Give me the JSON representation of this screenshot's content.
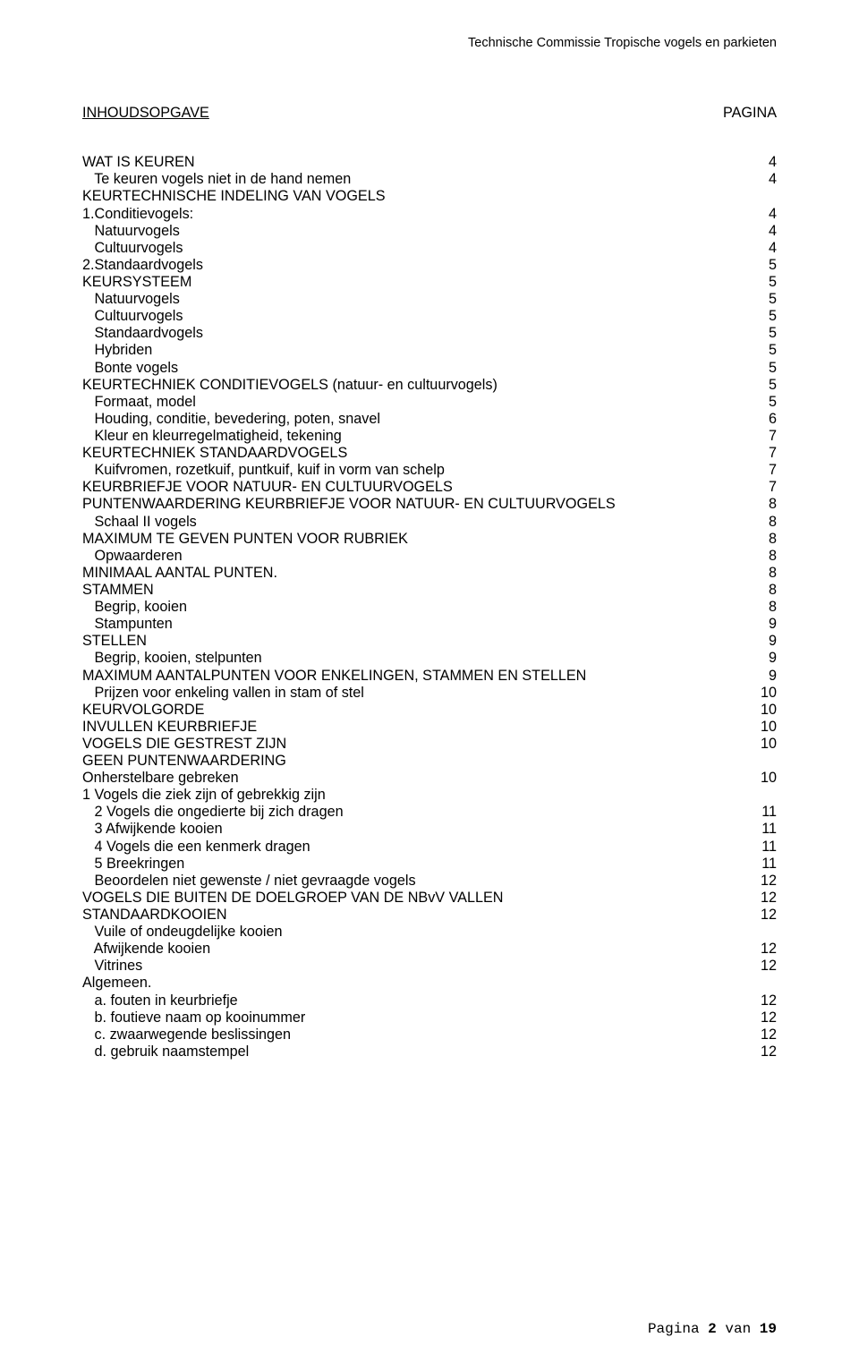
{
  "header": "Technische Commissie Tropische vogels en parkieten",
  "toc_title_left": "INHOUDSOPGAVE",
  "toc_title_right": "PAGINA",
  "entries": [
    {
      "label": "WAT IS KEUREN",
      "page": "4",
      "indent": 0
    },
    {
      "label": "Te keuren vogels niet in de hand nemen",
      "page": "4",
      "indent": 1
    },
    {
      "label": "KEURTECHNISCHE INDELING VAN VOGELS",
      "page": "",
      "indent": 0
    },
    {
      "label": "1.Conditievogels:",
      "page": "4",
      "indent": 0
    },
    {
      "label": "Natuurvogels",
      "page": "4",
      "indent": 1
    },
    {
      "label": "Cultuurvogels",
      "page": "4",
      "indent": 1
    },
    {
      "label": "2.Standaardvogels",
      "page": "5",
      "indent": 0
    },
    {
      "label": "KEURSYSTEEM",
      "page": "5",
      "indent": 0
    },
    {
      "label": "Natuurvogels",
      "page": "5",
      "indent": 1
    },
    {
      "label": "Cultuurvogels",
      "page": "5",
      "indent": 1
    },
    {
      "label": "Standaardvogels",
      "page": "5",
      "indent": 1
    },
    {
      "label": "Hybriden",
      "page": "5",
      "indent": 1
    },
    {
      "label": "Bonte vogels",
      "page": "5",
      "indent": 1
    },
    {
      "label": "KEURTECHNIEK CONDITIEVOGELS (natuur- en cultuurvogels)",
      "page": "5",
      "indent": 0
    },
    {
      "label": "Formaat, model",
      "page": "5",
      "indent": 1
    },
    {
      "label": "Houding, conditie, bevedering, poten, snavel",
      "page": "6",
      "indent": 1
    },
    {
      "label": "Kleur en kleurregelmatigheid, tekening",
      "page": "7",
      "indent": 1
    },
    {
      "label": "KEURTECHNIEK STANDAARDVOGELS",
      "page": "7",
      "indent": 0
    },
    {
      "label": "Kuifvromen, rozetkuif, puntkuif, kuif in vorm van schelp",
      "page": "7",
      "indent": 1
    },
    {
      "label": "KEURBRIEFJE VOOR NATUUR- EN CULTUURVOGELS",
      "page": "7",
      "indent": 0
    },
    {
      "label": "PUNTENWAARDERING KEURBRIEFJE VOOR NATUUR- EN CULTUURVOGELS",
      "page": "8",
      "indent": 0
    },
    {
      "label": "Schaal II vogels",
      "page": "8",
      "indent": 1
    },
    {
      "label": "MAXIMUM TE GEVEN PUNTEN VOOR RUBRIEK",
      "page": "8",
      "indent": 0
    },
    {
      "label": "Opwaarderen",
      "page": "8",
      "indent": 1
    },
    {
      "label": "MINIMAAL AANTAL PUNTEN.",
      "page": "8",
      "indent": 0
    },
    {
      "label": "STAMMEN",
      "page": "8",
      "indent": 0
    },
    {
      "label": "Begrip, kooien",
      "page": "8",
      "indent": 1
    },
    {
      "label": "Stampunten",
      "page": "9",
      "indent": 1
    },
    {
      "label": "STELLEN",
      "page": "9",
      "indent": 0
    },
    {
      "label": "Begrip, kooien, stelpunten",
      "page": "9",
      "indent": 1
    },
    {
      "label": "MAXIMUM AANTALPUNTEN VOOR ENKELINGEN, STAMMEN EN STELLEN",
      "page": "9",
      "indent": 0
    },
    {
      "label": "Prijzen voor enkeling vallen in stam of stel",
      "page": "10",
      "indent": 1
    },
    {
      "label": "KEURVOLGORDE",
      "page": "10",
      "indent": 0
    },
    {
      "label": "INVULLEN KEURBRIEFJE",
      "page": "10",
      "indent": 0
    },
    {
      "label": "VOGELS DIE GESTREST ZIJN",
      "page": "10",
      "indent": 0
    },
    {
      "label": "GEEN PUNTENWAARDERING",
      "page": "",
      "indent": 0
    },
    {
      "label": "Onherstelbare gebreken",
      "page": "10",
      "indent": 0
    },
    {
      "label": "1 Vogels die ziek zijn of gebrekkig zijn",
      "page": "",
      "indent": 0
    },
    {
      "label": "2 Vogels die ongedierte bij zich dragen",
      "page": "11",
      "indent": 1
    },
    {
      "label": "3 Afwijkende kooien",
      "page": "11",
      "indent": 1
    },
    {
      "label": "4 Vogels die een kenmerk dragen",
      "page": "11",
      "indent": 1
    },
    {
      "label": "5 Breekringen",
      "page": "11",
      "indent": 1
    },
    {
      "label": "Beoordelen niet gewenste / niet gevraagde vogels",
      "page": "12",
      "indent": 1
    },
    {
      "label": "VOGELS DIE BUITEN DE DOELGROEP VAN DE NBvV VALLEN",
      "page": "12",
      "indent": 0
    },
    {
      "label": "STANDAARDKOOIEN",
      "page": "12",
      "indent": 0
    },
    {
      "label": "Vuile of ondeugdelijke kooien",
      "page": "",
      "indent": 1
    },
    {
      "label": "Afwijkende kooien",
      "page": "12",
      "indent": 1
    },
    {
      "label": "Vitrines",
      "page": "12",
      "indent": 1
    },
    {
      "label": "Algemeen.",
      "page": "",
      "indent": 0
    },
    {
      "label": "a. fouten in keurbriefje",
      "page": "12",
      "indent": 1
    },
    {
      "label": "b. foutieve naam op kooinummer",
      "page": "12",
      "indent": 1
    },
    {
      "label": "c. zwaarwegende beslissingen",
      "page": "12",
      "indent": 1
    },
    {
      "label": "d. gebruik naamstempel",
      "page": "12",
      "indent": 1
    }
  ],
  "footer_prefix": "Pagina ",
  "footer_page": "2",
  "footer_mid": " van ",
  "footer_total": "19"
}
